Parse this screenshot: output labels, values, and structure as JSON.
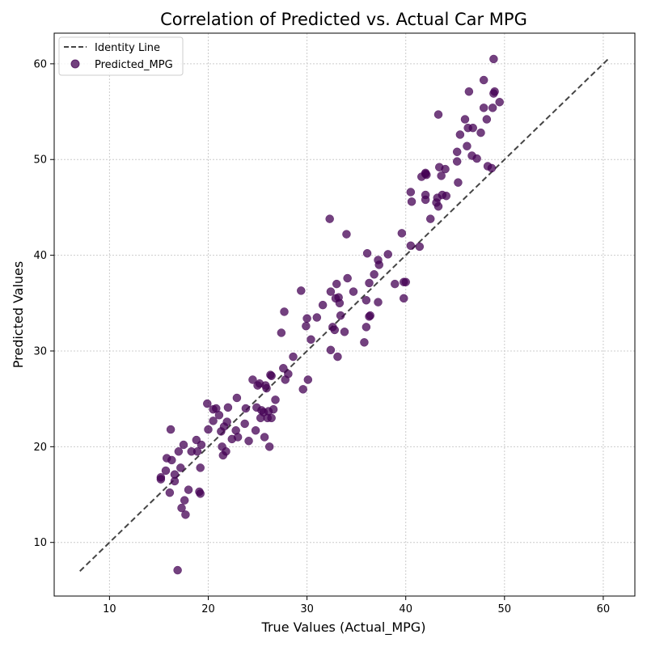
{
  "chart_data": {
    "type": "scatter",
    "title": "Correlation of Predicted vs. Actual Car MPG",
    "xlabel": "True Values (Actual_MPG)",
    "ylabel": "Predicted Values",
    "xlim": [
      4.4,
      63.2
    ],
    "ylim": [
      4.4,
      63.2
    ],
    "xticks": [
      10,
      20,
      30,
      40,
      50,
      60
    ],
    "yticks": [
      10,
      20,
      30,
      40,
      50,
      60
    ],
    "grid": true,
    "legend": {
      "position": "top-left",
      "entries": [
        "Identity Line",
        "Predicted_MPG"
      ]
    },
    "identity_line": {
      "name": "Identity Line",
      "x": [
        7.0,
        60.6
      ],
      "y": [
        7.0,
        60.6
      ],
      "color": "#444444",
      "style": "dashed"
    },
    "series": [
      {
        "name": "Predicted_MPG",
        "color": "#440154",
        "opacity": 0.75,
        "points": [
          [
            15.2,
            16.6
          ],
          [
            15.2,
            16.8
          ],
          [
            15.7,
            17.5
          ],
          [
            15.8,
            18.8
          ],
          [
            16.1,
            15.2
          ],
          [
            16.2,
            21.8
          ],
          [
            16.3,
            18.6
          ],
          [
            16.6,
            17.1
          ],
          [
            16.6,
            16.4
          ],
          [
            16.9,
            7.1
          ],
          [
            17.0,
            19.5
          ],
          [
            17.2,
            17.8
          ],
          [
            17.3,
            13.6
          ],
          [
            17.5,
            20.2
          ],
          [
            17.6,
            14.4
          ],
          [
            17.7,
            12.9
          ],
          [
            18.0,
            15.5
          ],
          [
            18.3,
            19.5
          ],
          [
            18.8,
            20.7
          ],
          [
            18.9,
            19.5
          ],
          [
            19.1,
            15.3
          ],
          [
            19.2,
            15.1
          ],
          [
            19.2,
            17.8
          ],
          [
            19.3,
            20.2
          ],
          [
            19.9,
            24.5
          ],
          [
            20.0,
            21.8
          ],
          [
            20.5,
            22.7
          ],
          [
            20.5,
            23.9
          ],
          [
            20.8,
            24.0
          ],
          [
            21.1,
            23.3
          ],
          [
            21.3,
            21.6
          ],
          [
            21.4,
            20.0
          ],
          [
            21.5,
            19.1
          ],
          [
            21.6,
            22.1
          ],
          [
            21.8,
            19.5
          ],
          [
            21.9,
            22.6
          ],
          [
            22.0,
            24.1
          ],
          [
            22.4,
            20.8
          ],
          [
            22.8,
            21.7
          ],
          [
            22.9,
            25.1
          ],
          [
            23.0,
            21.0
          ],
          [
            23.7,
            22.4
          ],
          [
            23.8,
            24.0
          ],
          [
            24.1,
            20.6
          ],
          [
            24.5,
            27.0
          ],
          [
            24.8,
            21.7
          ],
          [
            24.9,
            24.1
          ],
          [
            25.0,
            26.4
          ],
          [
            25.2,
            26.6
          ],
          [
            25.3,
            23.0
          ],
          [
            25.4,
            23.8
          ],
          [
            25.6,
            23.6
          ],
          [
            25.7,
            21.0
          ],
          [
            25.8,
            26.4
          ],
          [
            25.9,
            26.1
          ],
          [
            26.0,
            23.0
          ],
          [
            26.1,
            23.7
          ],
          [
            26.2,
            20.0
          ],
          [
            26.3,
            27.5
          ],
          [
            26.4,
            27.4
          ],
          [
            26.4,
            23.0
          ],
          [
            26.6,
            23.9
          ],
          [
            26.8,
            24.9
          ],
          [
            27.4,
            31.9
          ],
          [
            27.6,
            28.2
          ],
          [
            27.7,
            34.1
          ],
          [
            27.8,
            27.0
          ],
          [
            28.1,
            27.6
          ],
          [
            28.6,
            29.4
          ],
          [
            29.4,
            36.3
          ],
          [
            29.6,
            26.0
          ],
          [
            29.9,
            32.6
          ],
          [
            30.0,
            33.4
          ],
          [
            30.1,
            27.0
          ],
          [
            30.4,
            31.2
          ],
          [
            31.0,
            33.5
          ],
          [
            31.6,
            34.8
          ],
          [
            32.3,
            43.8
          ],
          [
            32.4,
            36.2
          ],
          [
            32.4,
            30.1
          ],
          [
            32.6,
            32.5
          ],
          [
            32.8,
            32.2
          ],
          [
            32.9,
            35.5
          ],
          [
            33.0,
            37.0
          ],
          [
            33.1,
            29.4
          ],
          [
            33.2,
            35.6
          ],
          [
            33.3,
            35.0
          ],
          [
            33.4,
            33.7
          ],
          [
            33.8,
            32.0
          ],
          [
            34.0,
            42.2
          ],
          [
            34.1,
            37.6
          ],
          [
            34.7,
            36.2
          ],
          [
            35.8,
            30.9
          ],
          [
            36.0,
            35.3
          ],
          [
            36.0,
            32.5
          ],
          [
            36.1,
            40.2
          ],
          [
            36.3,
            37.1
          ],
          [
            36.3,
            33.6
          ],
          [
            36.4,
            33.7
          ],
          [
            36.8,
            38.0
          ],
          [
            37.2,
            35.1
          ],
          [
            37.2,
            39.5
          ],
          [
            37.3,
            39.0
          ],
          [
            38.2,
            40.1
          ],
          [
            38.9,
            37.0
          ],
          [
            39.6,
            42.3
          ],
          [
            39.8,
            37.2
          ],
          [
            39.8,
            35.5
          ],
          [
            40.0,
            37.2
          ],
          [
            40.5,
            41.0
          ],
          [
            40.5,
            46.6
          ],
          [
            40.6,
            45.6
          ],
          [
            41.4,
            40.9
          ],
          [
            41.6,
            48.2
          ],
          [
            42.0,
            48.5
          ],
          [
            42.0,
            48.6
          ],
          [
            42.0,
            46.3
          ],
          [
            42.0,
            45.8
          ],
          [
            42.1,
            48.4
          ],
          [
            42.5,
            43.8
          ],
          [
            43.1,
            45.5
          ],
          [
            43.2,
            46.0
          ],
          [
            43.3,
            45.1
          ],
          [
            43.3,
            54.7
          ],
          [
            43.4,
            49.2
          ],
          [
            43.6,
            48.3
          ],
          [
            43.7,
            46.3
          ],
          [
            44.0,
            49.0
          ],
          [
            44.1,
            46.2
          ],
          [
            45.2,
            49.8
          ],
          [
            45.2,
            50.8
          ],
          [
            45.3,
            47.6
          ],
          [
            45.5,
            52.6
          ],
          [
            46.0,
            54.2
          ],
          [
            46.2,
            51.4
          ],
          [
            46.3,
            53.3
          ],
          [
            46.4,
            57.1
          ],
          [
            46.7,
            50.4
          ],
          [
            46.8,
            53.3
          ],
          [
            47.2,
            50.1
          ],
          [
            47.6,
            52.8
          ],
          [
            47.9,
            58.3
          ],
          [
            47.9,
            55.4
          ],
          [
            48.2,
            54.2
          ],
          [
            48.3,
            49.3
          ],
          [
            48.7,
            49.1
          ],
          [
            48.8,
            55.4
          ],
          [
            48.9,
            60.5
          ],
          [
            48.9,
            56.9
          ],
          [
            49.0,
            57.1
          ],
          [
            49.5,
            56.0
          ]
        ]
      }
    ]
  }
}
